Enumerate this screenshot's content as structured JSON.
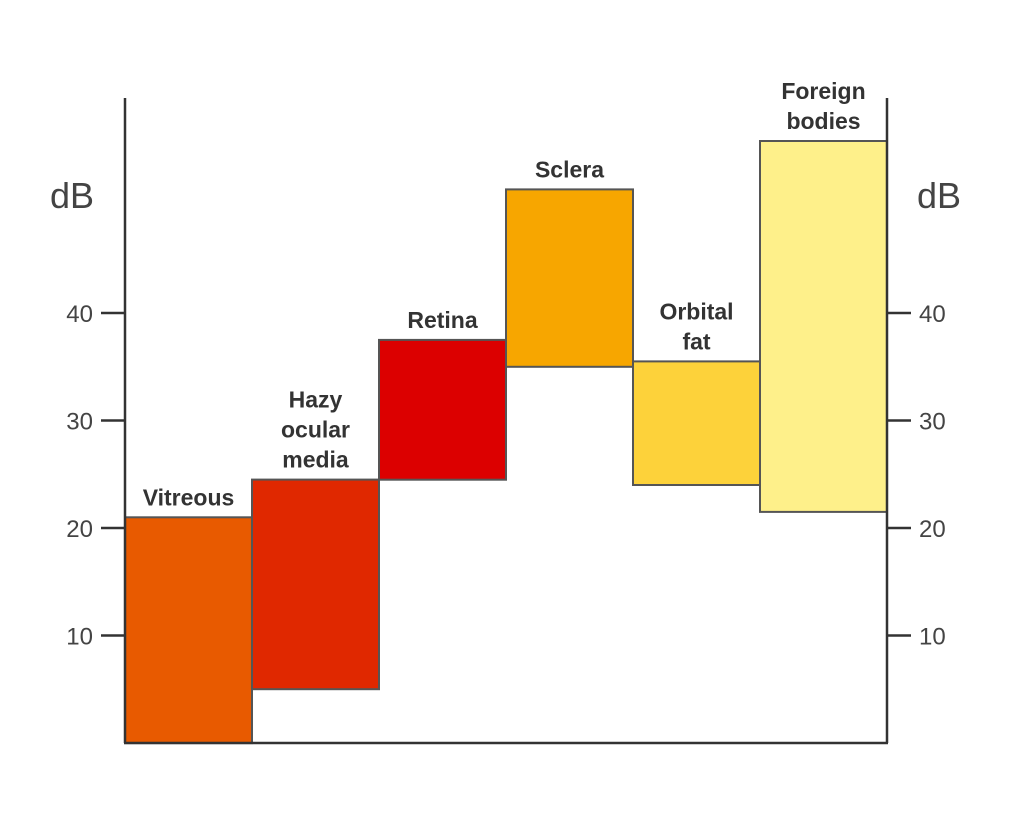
{
  "chart_data": {
    "type": "bar",
    "subtype": "floating-range",
    "units": "dB",
    "left_unit_label": "dB",
    "right_unit_label": "dB",
    "yticks": [
      10,
      20,
      30,
      40
    ],
    "ylim": [
      0,
      60
    ],
    "grid": false,
    "categories": [
      "Vitreous",
      "Hazy ocular media",
      "Retina",
      "Sclera",
      "Orbital fat",
      "Foreign bodies"
    ],
    "label_lines": [
      [
        "Vitreous"
      ],
      [
        "Hazy",
        "ocular",
        "media"
      ],
      [
        "Retina"
      ],
      [
        "Sclera"
      ],
      [
        "Orbital",
        "fat"
      ],
      [
        "Foreign",
        "bodies"
      ]
    ],
    "ranges": [
      {
        "category": "Vitreous",
        "low": 0,
        "high": 21,
        "color": "#E85A00"
      },
      {
        "category": "Hazy ocular media",
        "low": 5,
        "high": 24.5,
        "color": "#E02800"
      },
      {
        "category": "Retina",
        "low": 24.5,
        "high": 37.5,
        "color": "#DC0000"
      },
      {
        "category": "Sclera",
        "low": 35,
        "high": 51.5,
        "color": "#F7A600"
      },
      {
        "category": "Orbital fat",
        "low": 24,
        "high": 35.5,
        "color": "#FDD23A"
      },
      {
        "category": "Foreign bodies",
        "low": 21.5,
        "high": 56,
        "color": "#FEF08A"
      }
    ]
  }
}
